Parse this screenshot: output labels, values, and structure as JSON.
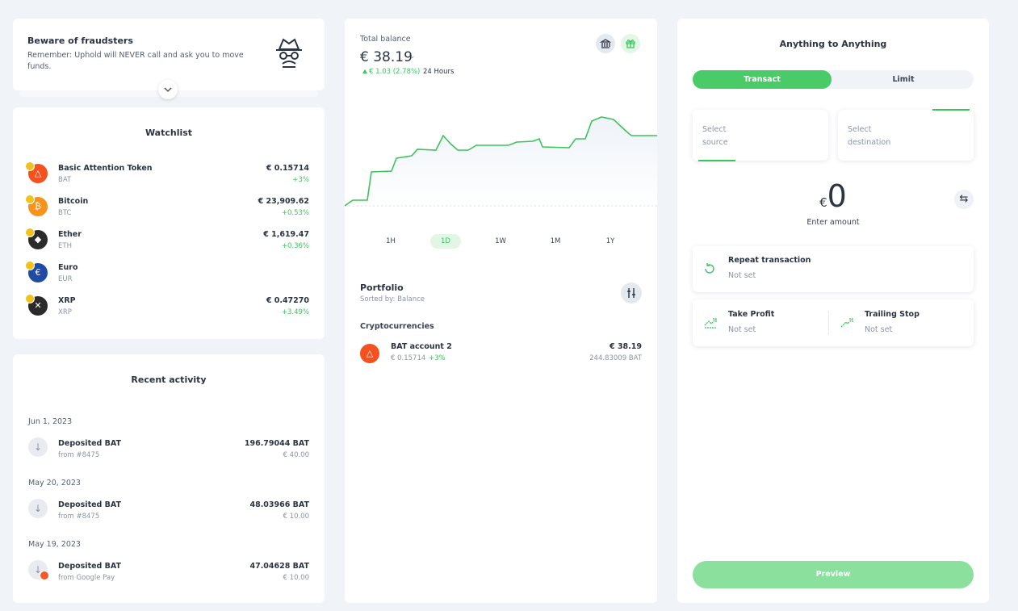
{
  "fraud_banner": {
    "title": "Beware of fraudsters",
    "text": "Remember: Uphold will NEVER call and ask you to move funds."
  },
  "watchlist": {
    "title": "Watchlist",
    "items": [
      {
        "name": "Basic Attention Token",
        "symbol": "BAT",
        "price": "€ 0.15714",
        "change": "+3%"
      },
      {
        "name": "Bitcoin",
        "symbol": "BTC",
        "price": "€ 23,909.62",
        "change": "+0.53%"
      },
      {
        "name": "Ether",
        "symbol": "ETH",
        "price": "€ 1,619.47",
        "change": "+0.36%"
      },
      {
        "name": "Euro",
        "symbol": "EUR"
      },
      {
        "name": "XRP",
        "symbol": "XRP",
        "price": "€ 0.47270",
        "change": "+3.49%"
      }
    ]
  },
  "recent_activity": {
    "title": "Recent activity",
    "groups": [
      {
        "date": "Jun 1, 2023",
        "items": [
          {
            "title": "Deposited BAT",
            "source": "from #8475",
            "amount": "196.79044 BAT",
            "fiat": "€ 40.00"
          }
        ]
      },
      {
        "date": "May 20, 2023",
        "items": [
          {
            "title": "Deposited BAT",
            "source": "from #8475",
            "amount": "48.03966 BAT",
            "fiat": "€ 10.00"
          }
        ]
      },
      {
        "date": "May 19, 2023",
        "items": [
          {
            "title": "Deposited BAT",
            "source": "from Google Pay",
            "amount": "47.04628 BAT",
            "fiat": "€ 10.00"
          }
        ]
      }
    ]
  },
  "balance": {
    "label": "Total balance",
    "amount": "€ 38.19",
    "change": "€ 1.03 (2.78%)",
    "period": "24 Hours",
    "ranges": [
      "1H",
      "1D",
      "1W",
      "1M",
      "1Y"
    ],
    "selected_range": 1
  },
  "portfolio": {
    "title": "Portfolio",
    "sorted_by": "Sorted by: Balance",
    "section": "Cryptocurrencies",
    "accounts": [
      {
        "name": "BAT account 2",
        "price": "€ 0.15714",
        "change": "+3%",
        "value": "€ 38.19",
        "amount": "244.83009 BAT"
      }
    ]
  },
  "trade": {
    "title": "Anything to Anything",
    "tabs": [
      "Transact",
      "Limit"
    ],
    "selected_tab": 0,
    "source": "Select source",
    "destination": "Select destination",
    "currency": "€",
    "amount": "0",
    "amount_hint": "Enter amount",
    "repeat": {
      "title": "Repeat transaction",
      "value": "Not set"
    },
    "take_profit": {
      "title": "Take Profit",
      "value": "Not set"
    },
    "trailing_stop": {
      "title": "Trailing Stop",
      "value": "Not set"
    },
    "button": "Preview"
  }
}
